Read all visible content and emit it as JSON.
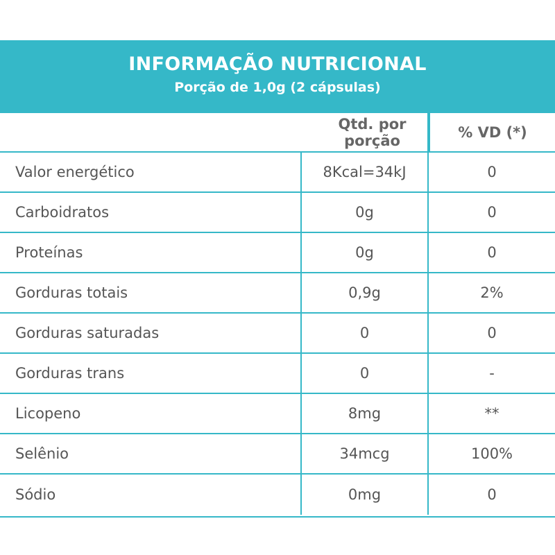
{
  "header": {
    "title": "INFORMAÇÃO NUTRICIONAL",
    "subtitle": "Porção de 1,0g (2 cápsulas)"
  },
  "columns": {
    "nutrient": "",
    "amount": "Qtd. por porção",
    "dv": "% VD (*)"
  },
  "rows": [
    {
      "nutrient": "Valor energético",
      "amount": "8Kcal=34kJ",
      "dv": "0"
    },
    {
      "nutrient": "Carboidratos",
      "amount": "0g",
      "dv": "0"
    },
    {
      "nutrient": "Proteínas",
      "amount": "0g",
      "dv": "0"
    },
    {
      "nutrient": "Gorduras totais",
      "amount": "0,9g",
      "dv": "2%"
    },
    {
      "nutrient": "Gorduras saturadas",
      "amount": "0",
      "dv": "0"
    },
    {
      "nutrient": "Gorduras trans",
      "amount": "0",
      "dv": "-"
    },
    {
      "nutrient": "Licopeno",
      "amount": "8mg",
      "dv": "**"
    },
    {
      "nutrient": "Selênio",
      "amount": "34mcg",
      "dv": "100%"
    },
    {
      "nutrient": "Sódio",
      "amount": "0mg",
      "dv": "0"
    }
  ],
  "colors": {
    "accent": "#35b8c8",
    "text": "#555555",
    "header_text": "#ffffff"
  }
}
